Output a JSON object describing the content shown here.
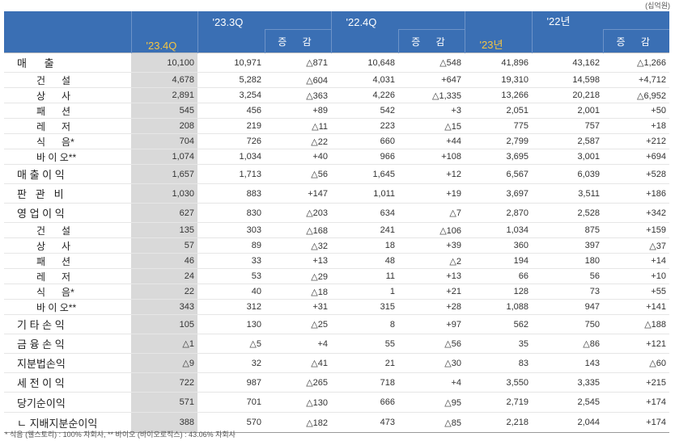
{
  "unit_label": "(십억원)",
  "footnote": "* 식음 (웰스토리) : 100% 자회사,  ** 바이오 (바이오로직스) : 43.06% 자회사",
  "headers": {
    "c1": "'23.4Q",
    "c2": "'23.3Q",
    "c4": "'22.4Q",
    "c6": "'23년",
    "c7": "'22년",
    "diff": "증 감"
  },
  "rows": [
    {
      "label": "매      출",
      "kind": "main",
      "cells": [
        "10,100",
        "10,971",
        "△871",
        "10,648",
        "△548",
        "41,896",
        "43,162",
        "△1,266"
      ]
    },
    {
      "label": "건      설",
      "kind": "sub",
      "cells": [
        "4,678",
        "5,282",
        "△604",
        "4,031",
        "+647",
        "19,310",
        "14,598",
        "+4,712"
      ]
    },
    {
      "label": "상      사",
      "kind": "sub",
      "cells": [
        "2,891",
        "3,254",
        "△363",
        "4,226",
        "△1,335",
        "13,266",
        "20,218",
        "△6,952"
      ]
    },
    {
      "label": "패      션",
      "kind": "sub",
      "cells": [
        "545",
        "456",
        "+89",
        "542",
        "+3",
        "2,051",
        "2,001",
        "+50"
      ]
    },
    {
      "label": "레      저",
      "kind": "sub",
      "cells": [
        "208",
        "219",
        "△11",
        "223",
        "△15",
        "775",
        "757",
        "+18"
      ]
    },
    {
      "label": "식      음*",
      "kind": "sub",
      "cells": [
        "704",
        "726",
        "△22",
        "660",
        "+44",
        "2,799",
        "2,587",
        "+212"
      ]
    },
    {
      "label": "바 이 오**",
      "kind": "sub",
      "cells": [
        "1,074",
        "1,034",
        "+40",
        "966",
        "+108",
        "3,695",
        "3,001",
        "+694"
      ]
    },
    {
      "label": "매 출 이 익",
      "kind": "main",
      "cells": [
        "1,657",
        "1,713",
        "△56",
        "1,645",
        "+12",
        "6,567",
        "6,039",
        "+528"
      ]
    },
    {
      "label": "판   관   비",
      "kind": "main",
      "cells": [
        "1,030",
        "883",
        "+147",
        "1,011",
        "+19",
        "3,697",
        "3,511",
        "+186"
      ]
    },
    {
      "label": "영 업 이 익",
      "kind": "main",
      "cells": [
        "627",
        "830",
        "△203",
        "634",
        "△7",
        "2,870",
        "2,528",
        "+342"
      ]
    },
    {
      "label": "건      설",
      "kind": "sub",
      "cells": [
        "135",
        "303",
        "△168",
        "241",
        "△106",
        "1,034",
        "875",
        "+159"
      ]
    },
    {
      "label": "상      사",
      "kind": "sub",
      "cells": [
        "57",
        "89",
        "△32",
        "18",
        "+39",
        "360",
        "397",
        "△37"
      ]
    },
    {
      "label": "패      션",
      "kind": "sub",
      "cells": [
        "46",
        "33",
        "+13",
        "48",
        "△2",
        "194",
        "180",
        "+14"
      ]
    },
    {
      "label": "레      저",
      "kind": "sub",
      "cells": [
        "24",
        "53",
        "△29",
        "11",
        "+13",
        "66",
        "56",
        "+10"
      ]
    },
    {
      "label": "식      음*",
      "kind": "sub",
      "cells": [
        "22",
        "40",
        "△18",
        "1",
        "+21",
        "128",
        "73",
        "+55"
      ]
    },
    {
      "label": "바 이 오**",
      "kind": "sub",
      "cells": [
        "343",
        "312",
        "+31",
        "315",
        "+28",
        "1,088",
        "947",
        "+141"
      ]
    },
    {
      "label": "기 타 손 익",
      "kind": "main",
      "cells": [
        "105",
        "130",
        "△25",
        "8",
        "+97",
        "562",
        "750",
        "△188"
      ]
    },
    {
      "label": "금 융 손 익",
      "kind": "main",
      "cells": [
        "△1",
        "△5",
        "+4",
        "55",
        "△56",
        "35",
        "△86",
        "+121"
      ]
    },
    {
      "label": "지분법손익",
      "kind": "main",
      "cells": [
        "△9",
        "32",
        "△41",
        "21",
        "△30",
        "83",
        "143",
        "△60"
      ]
    },
    {
      "label": "세 전 이 익",
      "kind": "main",
      "cells": [
        "722",
        "987",
        "△265",
        "718",
        "+4",
        "3,550",
        "3,335",
        "+215"
      ]
    },
    {
      "label": "당기순이익",
      "kind": "main tall",
      "cells": [
        "571",
        "701",
        "△130",
        "666",
        "△95",
        "2,719",
        "2,545",
        "+174"
      ]
    },
    {
      "label": "ㄴ 지배지분순이익",
      "kind": "main tall lastrow",
      "cells": [
        "388",
        "570",
        "△182",
        "473",
        "△85",
        "2,218",
        "2,044",
        "+174"
      ]
    }
  ]
}
